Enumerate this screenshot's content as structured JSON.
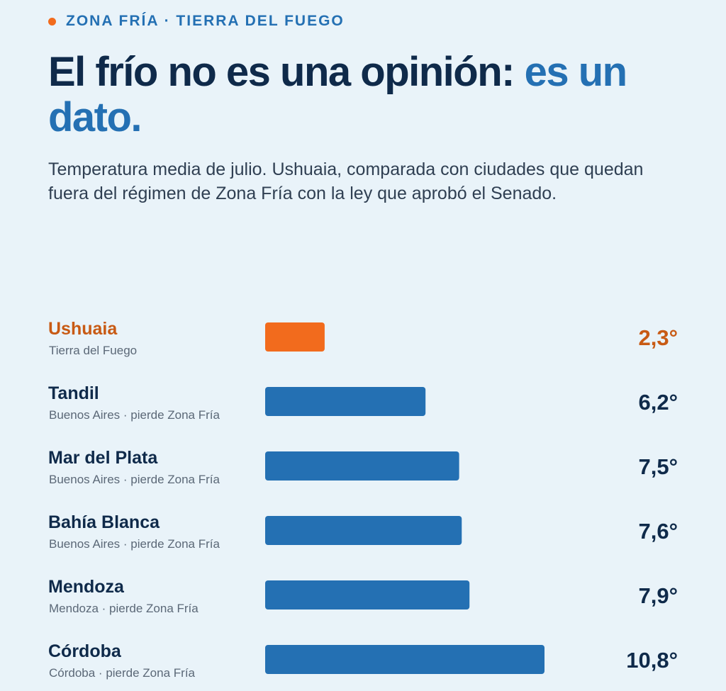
{
  "header": {
    "kicker": "ZONA FRÍA · TIERRA DEL FUEGO",
    "title_main": "El frío no es una opinión:",
    "title_accent": "es un dato.",
    "subtitle": "Temperatura media de julio. Ushuaia, comparada con ciudades que quedan fuera del régimen de Zona Fría con la ley que aprobó el Senado."
  },
  "colors": {
    "highlight": "#f26b1d",
    "highlight_text": "#c85a14",
    "bar": "#2470b3",
    "navy": "#0f2a4a",
    "accent": "#2470b3",
    "background": "#e9f3f9"
  },
  "chart_data": {
    "type": "bar",
    "orientation": "horizontal",
    "unit": "°",
    "xlim": [
      0,
      10.8
    ],
    "categories": [
      "Ushuaia",
      "Tandil",
      "Mar del Plata",
      "Bahía Blanca",
      "Mendoza",
      "Córdoba"
    ],
    "sublabels": [
      "Tierra del Fuego",
      "Buenos Aires · pierde Zona Fría",
      "Buenos Aires · pierde Zona Fría",
      "Buenos Aires · pierde Zona Fría",
      "Mendoza · pierde Zona Fría",
      "Córdoba · pierde Zona Fría"
    ],
    "values": [
      2.3,
      6.2,
      7.5,
      7.6,
      7.9,
      10.8
    ],
    "value_labels": [
      "2,3°",
      "6,2°",
      "7,5°",
      "7,6°",
      "7,9°",
      "10,8°"
    ],
    "highlight_index": 0
  }
}
